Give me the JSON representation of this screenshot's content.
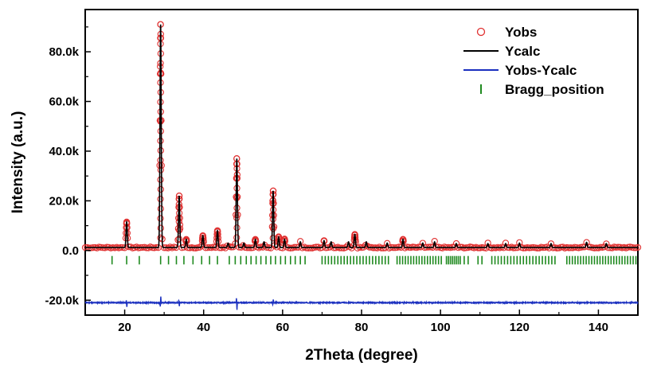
{
  "chart_data": {
    "type": "line",
    "title": "",
    "xlabel": "2Theta (degree)",
    "ylabel": "Intensity (a.u.)",
    "xlim": [
      10,
      150
    ],
    "ylim": [
      -26000,
      97000
    ],
    "x_ticks": [
      20,
      40,
      60,
      80,
      100,
      120,
      140
    ],
    "y_ticks": [
      -20000,
      0,
      20000,
      40000,
      60000,
      80000
    ],
    "x_tick_labels": [
      "20",
      "40",
      "60",
      "80",
      "100",
      "120",
      "140"
    ],
    "y_tick_labels": [
      "-20.0k",
      "0.0",
      "20.0k",
      "40.0k",
      "60.0k",
      "80.0k"
    ],
    "grid": false,
    "legend_position": "top-right",
    "colors": {
      "yobs": "#e03030",
      "ycalc": "#000000",
      "diff": "#1a2fbf",
      "bragg": "#1f8a1f"
    },
    "baseline": 1200,
    "diff_offset": -21000,
    "peaks": [
      {
        "x": 20.5,
        "y": 11500
      },
      {
        "x": 29.1,
        "y": 91000
      },
      {
        "x": 33.8,
        "y": 22000
      },
      {
        "x": 35.6,
        "y": 4500
      },
      {
        "x": 39.8,
        "y": 6000
      },
      {
        "x": 43.5,
        "y": 8000
      },
      {
        "x": 46.2,
        "y": 3000
      },
      {
        "x": 48.4,
        "y": 37000
      },
      {
        "x": 50.2,
        "y": 3000
      },
      {
        "x": 53.1,
        "y": 4500
      },
      {
        "x": 55.3,
        "y": 3500
      },
      {
        "x": 57.6,
        "y": 24000
      },
      {
        "x": 59.0,
        "y": 5500
      },
      {
        "x": 60.5,
        "y": 4500
      },
      {
        "x": 64.5,
        "y": 3500
      },
      {
        "x": 70.5,
        "y": 4000
      },
      {
        "x": 72.3,
        "y": 3500
      },
      {
        "x": 76.7,
        "y": 3500
      },
      {
        "x": 78.3,
        "y": 6500
      },
      {
        "x": 81.2,
        "y": 3500
      },
      {
        "x": 86.5,
        "y": 3000
      },
      {
        "x": 90.5,
        "y": 4500
      },
      {
        "x": 95.5,
        "y": 3000
      },
      {
        "x": 98.5,
        "y": 3500
      },
      {
        "x": 104.0,
        "y": 2800
      },
      {
        "x": 112.0,
        "y": 2800
      },
      {
        "x": 116.5,
        "y": 2800
      },
      {
        "x": 120.0,
        "y": 3000
      },
      {
        "x": 128.0,
        "y": 2800
      },
      {
        "x": 137.0,
        "y": 3300
      },
      {
        "x": 142.0,
        "y": 2800
      }
    ],
    "diff_spikes": [
      {
        "x": 20.5,
        "y": -1500
      },
      {
        "x": 29.1,
        "y": 2000
      },
      {
        "x": 33.8,
        "y": -1200
      },
      {
        "x": 48.4,
        "y": -2500
      },
      {
        "x": 57.6,
        "y": 1200
      }
    ],
    "bragg_positions": [
      16.8,
      20.5,
      23.7,
      29.1,
      31.1,
      33.1,
      35.0,
      37.3,
      39.5,
      41.5,
      43.5,
      46.5,
      48.0,
      49.4,
      50.8,
      52.0,
      53.3,
      54.5,
      55.8,
      57.0,
      58.2,
      59.5,
      60.7,
      62.0,
      63.2,
      64.5,
      65.7,
      70.0,
      70.8,
      71.6,
      72.4,
      73.2,
      74.0,
      74.8,
      75.6,
      76.4,
      77.2,
      78.0,
      78.8,
      79.6,
      80.4,
      81.2,
      82.0,
      82.8,
      83.6,
      84.4,
      85.2,
      86.0,
      86.8,
      89.0,
      89.7,
      90.4,
      91.1,
      91.8,
      92.5,
      93.2,
      93.9,
      94.6,
      95.3,
      96.0,
      96.7,
      97.4,
      98.1,
      98.8,
      99.5,
      100.2,
      101.5,
      102.0,
      102.5,
      103.0,
      103.5,
      104.0,
      104.5,
      105.0,
      106.0,
      107.0,
      109.5,
      110.5,
      113.0,
      113.8,
      114.6,
      115.4,
      116.2,
      117.0,
      117.8,
      118.6,
      119.4,
      120.2,
      121.0,
      121.8,
      122.6,
      123.4,
      124.2,
      125.0,
      125.8,
      126.6,
      127.4,
      128.2,
      129.0,
      132.0,
      132.7,
      133.4,
      134.1,
      134.8,
      135.5,
      136.2,
      136.9,
      137.6,
      138.3,
      139.0,
      139.7,
      140.4,
      141.1,
      141.8,
      142.5,
      143.2,
      143.9,
      144.6,
      145.3,
      146.0,
      146.7,
      147.4,
      148.1,
      148.8,
      149.5
    ],
    "legend": [
      {
        "key": "yobs",
        "label": "Yobs",
        "marker": "circle"
      },
      {
        "key": "ycalc",
        "label": "Ycalc",
        "marker": "line"
      },
      {
        "key": "diff",
        "label": "Yobs-Ycalc",
        "marker": "line"
      },
      {
        "key": "bragg",
        "label": "Bragg_position",
        "marker": "tick"
      }
    ]
  }
}
